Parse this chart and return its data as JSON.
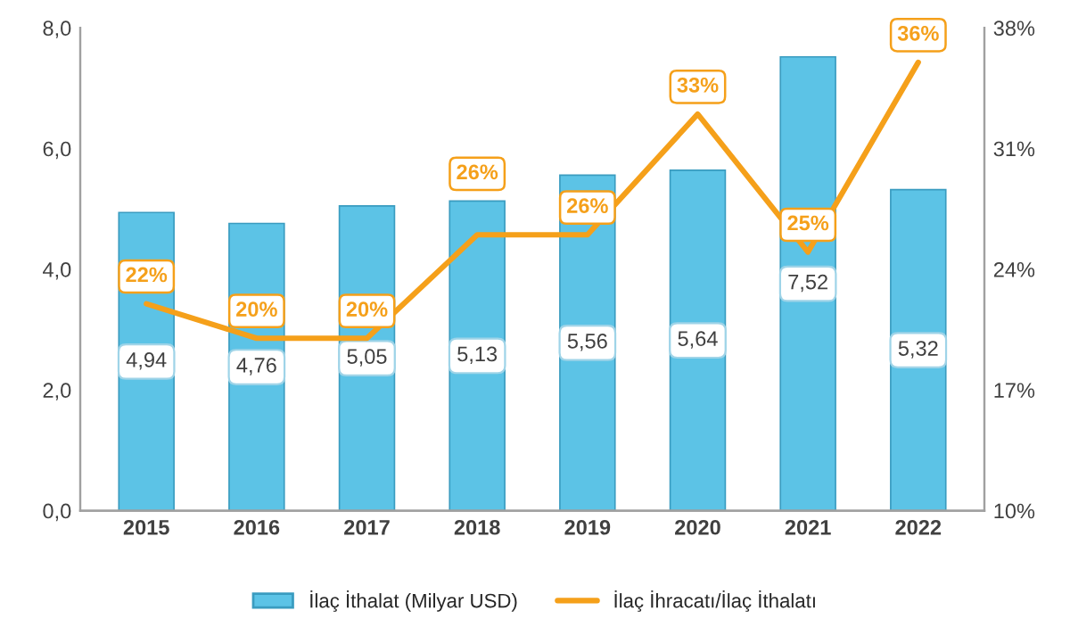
{
  "chart_data": {
    "type": "bar",
    "categories": [
      "2015",
      "2016",
      "2017",
      "2018",
      "2019",
      "2020",
      "2021",
      "2022"
    ],
    "series": [
      {
        "name": "İlaç İthalat (Milyar USD)",
        "color": "#5cc3e6",
        "values": [
          4.94,
          4.76,
          5.05,
          5.13,
          5.56,
          5.64,
          7.52,
          5.32
        ],
        "value_labels": [
          "4,94",
          "4,76",
          "5,05",
          "5,13",
          "5,56",
          "5,64",
          "7,52",
          "5,32"
        ]
      },
      {
        "name": "İlaç İhracatı/İlaç İthalatı",
        "type": "line",
        "axis": "y2",
        "color": "#f5a01a",
        "values": [
          22,
          20,
          20,
          26,
          26,
          33,
          25,
          36
        ],
        "value_labels": [
          "22%",
          "20%",
          "20%",
          "26%",
          "26%",
          "33%",
          "25%",
          "36%"
        ]
      }
    ],
    "ylim": [
      0,
      8
    ],
    "yticks": [
      {
        "value": 0,
        "label": "0,0"
      },
      {
        "value": 2,
        "label": "2,0"
      },
      {
        "value": 4,
        "label": "4,0"
      },
      {
        "value": 6,
        "label": "6,0"
      },
      {
        "value": 8,
        "label": "8,0"
      }
    ],
    "y2lim": [
      10,
      38
    ],
    "y2ticks": [
      {
        "value": 10,
        "label": "10%"
      },
      {
        "value": 17,
        "label": "17%"
      },
      {
        "value": 24,
        "label": "24%"
      },
      {
        "value": 31,
        "label": "31%"
      },
      {
        "value": 38,
        "label": "38%"
      }
    ],
    "legend": "bottom",
    "grid": false,
    "marker": "none",
    "line_style": "solid"
  }
}
